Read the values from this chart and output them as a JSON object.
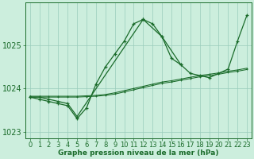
{
  "title": "Graphe pression niveau de la mer (hPa)",
  "background_color": "#cceedd",
  "grid_color": "#99ccbb",
  "line_color": "#1a6b2a",
  "hours": [
    0,
    1,
    2,
    3,
    4,
    5,
    6,
    7,
    8,
    9,
    10,
    11,
    12,
    13,
    14,
    15,
    16,
    17,
    18,
    19,
    20,
    21,
    22,
    23
  ],
  "series1": [
    1023.8,
    1023.75,
    1023.7,
    1023.65,
    1023.6,
    1023.3,
    1023.55,
    1024.1,
    1024.5,
    1024.8,
    1025.1,
    1025.5,
    1025.6,
    1025.5,
    1025.2,
    1024.7,
    1024.55,
    null,
    null,
    null,
    null,
    null,
    null,
    null
  ],
  "series2": [
    1023.8,
    1023.8,
    1023.75,
    1023.7,
    1023.65,
    1023.35,
    null,
    null,
    null,
    null,
    null,
    null,
    1025.6,
    null,
    1025.2,
    null,
    1024.55,
    1024.35,
    1024.3,
    1024.25,
    1024.35,
    1024.45,
    1025.1,
    1025.7
  ],
  "series3": [
    1023.82,
    1023.82,
    1023.82,
    1023.82,
    1023.82,
    1023.82,
    1023.83,
    1023.84,
    1023.86,
    1023.9,
    1023.95,
    1024.0,
    1024.05,
    1024.1,
    1024.15,
    1024.18,
    1024.22,
    1024.26,
    1024.3,
    1024.33,
    1024.36,
    1024.4,
    1024.43,
    1024.47
  ],
  "series4": [
    1023.8,
    1023.8,
    1023.8,
    1023.8,
    1023.8,
    1023.8,
    1023.81,
    1023.82,
    1023.84,
    1023.87,
    1023.92,
    1023.97,
    1024.02,
    1024.07,
    1024.12,
    1024.15,
    1024.19,
    1024.23,
    1024.27,
    1024.3,
    1024.33,
    1024.37,
    1024.4,
    1024.44
  ],
  "ylim": [
    1022.85,
    1026.0
  ],
  "yticks": [
    1023,
    1024,
    1025
  ],
  "tick_fontsize": 6,
  "title_fontsize": 6.5
}
